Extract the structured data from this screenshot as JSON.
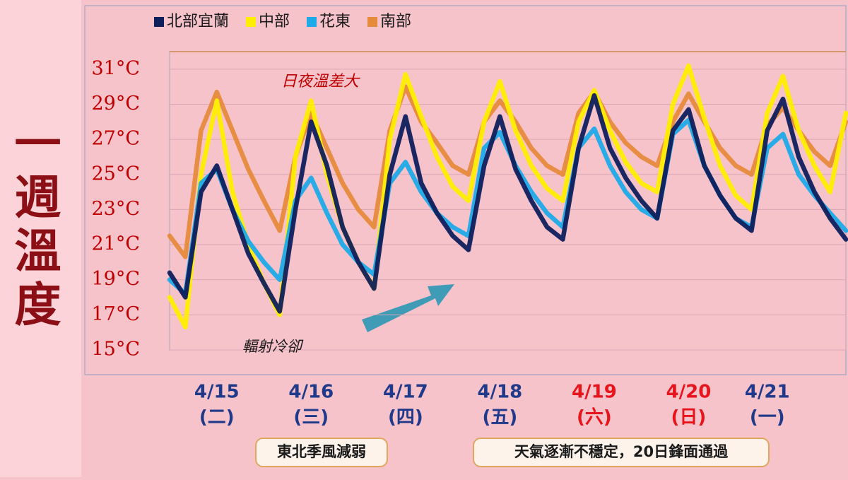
{
  "chart_data": {
    "type": "line",
    "title": "一週溫度",
    "categories": [
      null,
      null,
      null,
      "4/15",
      null,
      null,
      null,
      null,
      null,
      "4/16",
      null,
      null,
      null,
      null,
      null,
      "4/17",
      null,
      null,
      null,
      null,
      null,
      "4/18",
      null,
      null,
      null,
      null,
      null,
      "4/19",
      null,
      null,
      null,
      null,
      null,
      "4/20",
      null,
      null,
      null,
      null,
      "4/21",
      null,
      null,
      null,
      null,
      null
    ],
    "weekdays": [
      null,
      null,
      null,
      "(二)",
      null,
      null,
      null,
      null,
      null,
      "(三)",
      null,
      null,
      null,
      null,
      null,
      "(四)",
      null,
      null,
      null,
      null,
      null,
      "(五)",
      null,
      null,
      null,
      null,
      null,
      "(六)",
      null,
      null,
      null,
      null,
      null,
      "(日)",
      null,
      null,
      null,
      null,
      "(一)",
      null,
      null,
      null,
      null,
      null
    ],
    "category_colors": [
      null,
      null,
      null,
      "#1f3a8a",
      null,
      null,
      null,
      null,
      null,
      "#1f3a8a",
      null,
      null,
      null,
      null,
      null,
      "#1f3a8a",
      null,
      null,
      null,
      null,
      null,
      "#1f3a8a",
      null,
      null,
      null,
      null,
      null,
      "#e8141b",
      null,
      null,
      null,
      null,
      null,
      "#e8141b",
      null,
      null,
      null,
      null,
      "#1f3a8a",
      null,
      null,
      null,
      null,
      null
    ],
    "series": [
      {
        "name": "北部宜蘭",
        "color": "#0f1f5c",
        "values": [
          19.4,
          18,
          24,
          25.5,
          23,
          20.5,
          18.8,
          17.2,
          23,
          28,
          25.5,
          22,
          20,
          18.5,
          25,
          28.3,
          24.5,
          22.8,
          21.5,
          20.7,
          25.5,
          28.3,
          25.3,
          23.5,
          22,
          21.3,
          26.5,
          29.5,
          26.5,
          24.8,
          23.5,
          22.5,
          27.5,
          28.7,
          25.5,
          23.8,
          22.5,
          21.8,
          27.5,
          29.3,
          26,
          24,
          22.5,
          21.3
        ]
      },
      {
        "name": "中部",
        "color": "#ffee00",
        "values": [
          18,
          16.3,
          25,
          29.2,
          24,
          21,
          18.8,
          17,
          26,
          29.2,
          25,
          22,
          20,
          18.5,
          27,
          30.7,
          28.3,
          26,
          24.3,
          23.5,
          28,
          30.3,
          27.5,
          25.5,
          24.2,
          23.5,
          28,
          29.8,
          27.5,
          25.7,
          24.5,
          24,
          29,
          31.2,
          28.2,
          25.5,
          23.8,
          23,
          28.5,
          30.6,
          27.5,
          25.5,
          24,
          28.5
        ]
      },
      {
        "name": "花東",
        "color": "#1eaae8",
        "values": [
          19,
          18.2,
          24.5,
          25.3,
          23,
          21.2,
          20,
          19,
          23.5,
          24.8,
          22.8,
          21,
          20,
          19.3,
          24.5,
          25.7,
          24,
          22.8,
          22,
          21.5,
          26.5,
          27.4,
          25.5,
          24,
          22.8,
          22,
          26.5,
          27.6,
          25.5,
          24,
          23,
          22.5,
          27.3,
          28.1,
          25.5,
          23.8,
          22.5,
          22,
          26.5,
          27.3,
          25,
          23.8,
          22.8,
          21.8
        ]
      },
      {
        "name": "南部",
        "color": "#e68a3c",
        "values": [
          21.5,
          20.3,
          27.5,
          29.7,
          27.5,
          25.3,
          23.5,
          21.8,
          26,
          28.5,
          26.5,
          24.5,
          23,
          22,
          27.5,
          30,
          28,
          26.8,
          25.5,
          25,
          28,
          29.2,
          28,
          26.5,
          25.5,
          25,
          28.5,
          29.7,
          28,
          26.8,
          26,
          25.5,
          28,
          29.6,
          28,
          26.5,
          25.5,
          25,
          27.8,
          28.8,
          27.5,
          26.3,
          25.5,
          28
        ]
      }
    ],
    "ylim": [
      15,
      32
    ],
    "yticks": [
      {
        "value": 15,
        "label": "15°C"
      },
      {
        "value": 17,
        "label": "17°C"
      },
      {
        "value": 19,
        "label": "19°C"
      },
      {
        "value": 21,
        "label": "21°C"
      },
      {
        "value": 23,
        "label": "23°C"
      },
      {
        "value": 25,
        "label": "25°C"
      },
      {
        "value": 27,
        "label": "27°C"
      },
      {
        "value": 29,
        "label": "29°C"
      },
      {
        "value": 31,
        "label": "31°C"
      }
    ],
    "grid": true,
    "annotations": [
      "日夜溫差大",
      "輻射冷卻"
    ],
    "notes": [
      "東北季風減弱",
      "天氣逐漸不穩定，20日鋒面通過"
    ]
  }
}
